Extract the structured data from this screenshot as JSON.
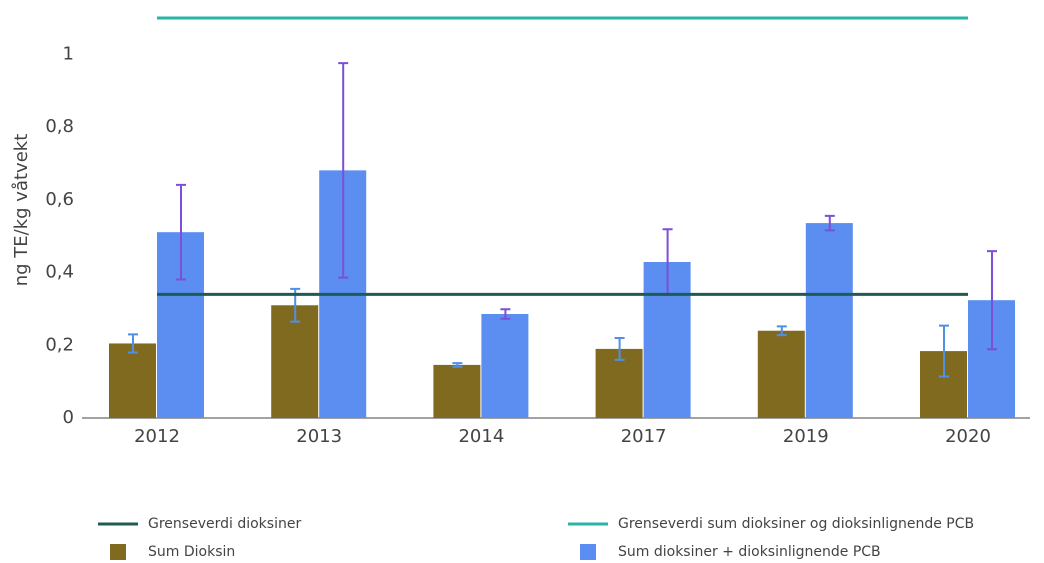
{
  "chart_data": {
    "type": "bar",
    "y_label": "ng TE/kg våtvekt",
    "categories": [
      "2012",
      "2013",
      "2014",
      "2017",
      "2019",
      "2020"
    ],
    "series": [
      {
        "name": "Grenseverdi dioksiner",
        "type": "line",
        "color": "#1f5b52",
        "values": [
          0.34,
          0.34,
          0.34,
          0.34,
          0.34,
          0.34
        ]
      },
      {
        "name": "Grenseverdi sum dioksiner og dioksinlignende PCB",
        "type": "line",
        "color": "#2bb3a8",
        "values": [
          1.1,
          1.1,
          1.1,
          1.1,
          1.1,
          1.1
        ]
      },
      {
        "name": "Sum Dioksin",
        "type": "bar",
        "color": "#806a20",
        "error_color": "#4f8fe6",
        "values": [
          0.205,
          0.31,
          0.146,
          0.19,
          0.24,
          0.184
        ],
        "errors": [
          0.025,
          0.045,
          0.005,
          0.03,
          0.012,
          0.07
        ]
      },
      {
        "name": "Sum dioksiner + dioksinlignende PCB",
        "type": "bar",
        "color": "#5b8ef0",
        "error_color": "#7d4fd6",
        "values": [
          0.511,
          0.681,
          0.286,
          0.429,
          0.536,
          0.324
        ],
        "errors": [
          0.13,
          0.295,
          0.013,
          0.09,
          0.02,
          0.135
        ]
      }
    ],
    "ylim": [
      0,
      1.1
    ],
    "yticks": [
      0,
      {
        "value": 0.2,
        "label": "0,2"
      },
      {
        "value": 0.4,
        "label": "0,4"
      },
      {
        "value": 0.6,
        "label": "0,6"
      },
      {
        "value": 0.8,
        "label": "0,8"
      },
      1
    ],
    "grid": false,
    "legend": "bottom"
  }
}
